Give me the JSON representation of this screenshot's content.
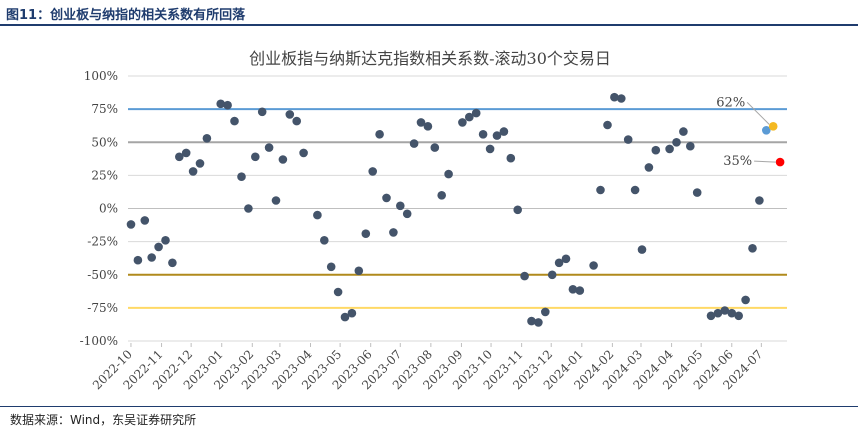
{
  "figure": {
    "title": "图11：创业板与纳指的相关系数有所回落",
    "source": "数据来源：Wind，东吴证券研究所"
  },
  "chart_data": {
    "type": "scatter",
    "title": "创业板指与纳斯达克指数相关系数-滚动30个交易日",
    "xlabel": "",
    "ylabel": "",
    "ylim": [
      -100,
      100
    ],
    "y_unit": "%",
    "yticks": [
      "100%",
      "75%",
      "50%",
      "25%",
      "0%",
      "-25%",
      "-50%",
      "-75%",
      "-100%"
    ],
    "x_ticks": [
      "2022-10",
      "2022-11",
      "2022-12",
      "2023-01",
      "2023-02",
      "2023-03",
      "2023-04",
      "2023-05",
      "2023-06",
      "2023-07",
      "2023-08",
      "2023-09",
      "2023-10",
      "2023-11",
      "2023-12",
      "2024-01",
      "2024-02",
      "2024-03",
      "2024-04",
      "2024-05",
      "2024-06",
      "2024-07"
    ],
    "grid": "horizontal",
    "reference_lines": [
      {
        "value": 75,
        "color": "#5b9bd5"
      },
      {
        "value": 50,
        "color": "#a5a5a5"
      },
      {
        "value": -50,
        "color": "#b08a1c"
      },
      {
        "value": -75,
        "color": "#ffd966"
      }
    ],
    "series": [
      {
        "color": "#44546a",
        "points": [
          [
            "2022-10-01",
            -12
          ],
          [
            "2022-10-08",
            -39
          ],
          [
            "2022-10-15",
            -9
          ],
          [
            "2022-10-22",
            -37
          ],
          [
            "2022-10-29",
            -29
          ],
          [
            "2022-11-05",
            -24
          ],
          [
            "2022-11-12",
            -41
          ],
          [
            "2022-11-19",
            39
          ],
          [
            "2022-11-26",
            42
          ],
          [
            "2022-12-03",
            28
          ],
          [
            "2022-12-10",
            34
          ],
          [
            "2022-12-17",
            53
          ],
          [
            "2022-12-31",
            79
          ],
          [
            "2023-01-07",
            78
          ],
          [
            "2023-01-14",
            66
          ],
          [
            "2023-01-21",
            24
          ],
          [
            "2023-01-28",
            0
          ],
          [
            "2023-02-04",
            39
          ],
          [
            "2023-02-11",
            73
          ],
          [
            "2023-02-18",
            46
          ],
          [
            "2023-02-25",
            6
          ],
          [
            "2023-03-04",
            37
          ],
          [
            "2023-03-11",
            71
          ],
          [
            "2023-03-18",
            66
          ],
          [
            "2023-03-25",
            42
          ],
          [
            "2023-04-08",
            -5
          ],
          [
            "2023-04-15",
            -24
          ],
          [
            "2023-04-22",
            -44
          ],
          [
            "2023-04-29",
            -63
          ],
          [
            "2023-05-06",
            -82
          ],
          [
            "2023-05-13",
            -79
          ],
          [
            "2023-05-20",
            -47
          ],
          [
            "2023-05-27",
            -19
          ],
          [
            "2023-06-03",
            28
          ],
          [
            "2023-06-10",
            56
          ],
          [
            "2023-06-17",
            8
          ],
          [
            "2023-06-24",
            -18
          ],
          [
            "2023-07-01",
            2
          ],
          [
            "2023-07-08",
            -4
          ],
          [
            "2023-07-15",
            49
          ],
          [
            "2023-07-22",
            65
          ],
          [
            "2023-07-29",
            62
          ],
          [
            "2023-08-05",
            46
          ],
          [
            "2023-08-12",
            10
          ],
          [
            "2023-08-19",
            26
          ],
          [
            "2023-09-02",
            65
          ],
          [
            "2023-09-09",
            69
          ],
          [
            "2023-09-16",
            72
          ],
          [
            "2023-09-23",
            56
          ],
          [
            "2023-09-30",
            45
          ],
          [
            "2023-10-07",
            55
          ],
          [
            "2023-10-14",
            58
          ],
          [
            "2023-10-21",
            38
          ],
          [
            "2023-10-28",
            -1
          ],
          [
            "2023-11-04",
            -51
          ],
          [
            "2023-11-11",
            -85
          ],
          [
            "2023-11-18",
            -86
          ],
          [
            "2023-11-25",
            -78
          ],
          [
            "2023-12-02",
            -50
          ],
          [
            "2023-12-09",
            -41
          ],
          [
            "2023-12-16",
            -38
          ],
          [
            "2023-12-23",
            -61
          ],
          [
            "2023-12-30",
            -62
          ],
          [
            "2024-01-13",
            -43
          ],
          [
            "2024-01-20",
            14
          ],
          [
            "2024-01-27",
            63
          ],
          [
            "2024-02-03",
            84
          ],
          [
            "2024-02-10",
            83
          ],
          [
            "2024-02-17",
            52
          ],
          [
            "2024-02-24",
            14
          ],
          [
            "2024-03-02",
            -31
          ],
          [
            "2024-03-09",
            31
          ],
          [
            "2024-03-16",
            44
          ],
          [
            "2024-03-30",
            45
          ],
          [
            "2024-04-06",
            50
          ],
          [
            "2024-04-13",
            58
          ],
          [
            "2024-04-20",
            47
          ],
          [
            "2024-04-27",
            12
          ],
          [
            "2024-05-11",
            -81
          ],
          [
            "2024-05-18",
            -79
          ],
          [
            "2024-05-25",
            -77
          ],
          [
            "2024-06-01",
            -79
          ],
          [
            "2024-06-08",
            -81
          ],
          [
            "2024-06-15",
            -69
          ],
          [
            "2024-06-22",
            -30
          ],
          [
            "2024-06-29",
            6
          ]
        ]
      },
      {
        "color": "#5b9bd5",
        "points": [
          [
            "2024-07-06",
            59
          ]
        ]
      },
      {
        "color": "#f4b922",
        "points": [
          [
            "2024-07-13",
            62
          ]
        ]
      },
      {
        "color": "#ff0000",
        "points": [
          [
            "2024-07-20",
            35
          ]
        ]
      }
    ],
    "annotations": [
      {
        "text": "62%",
        "x": "2024-07-13",
        "y": 62
      },
      {
        "text": "35%",
        "x": "2024-07-20",
        "y": 35
      }
    ]
  }
}
